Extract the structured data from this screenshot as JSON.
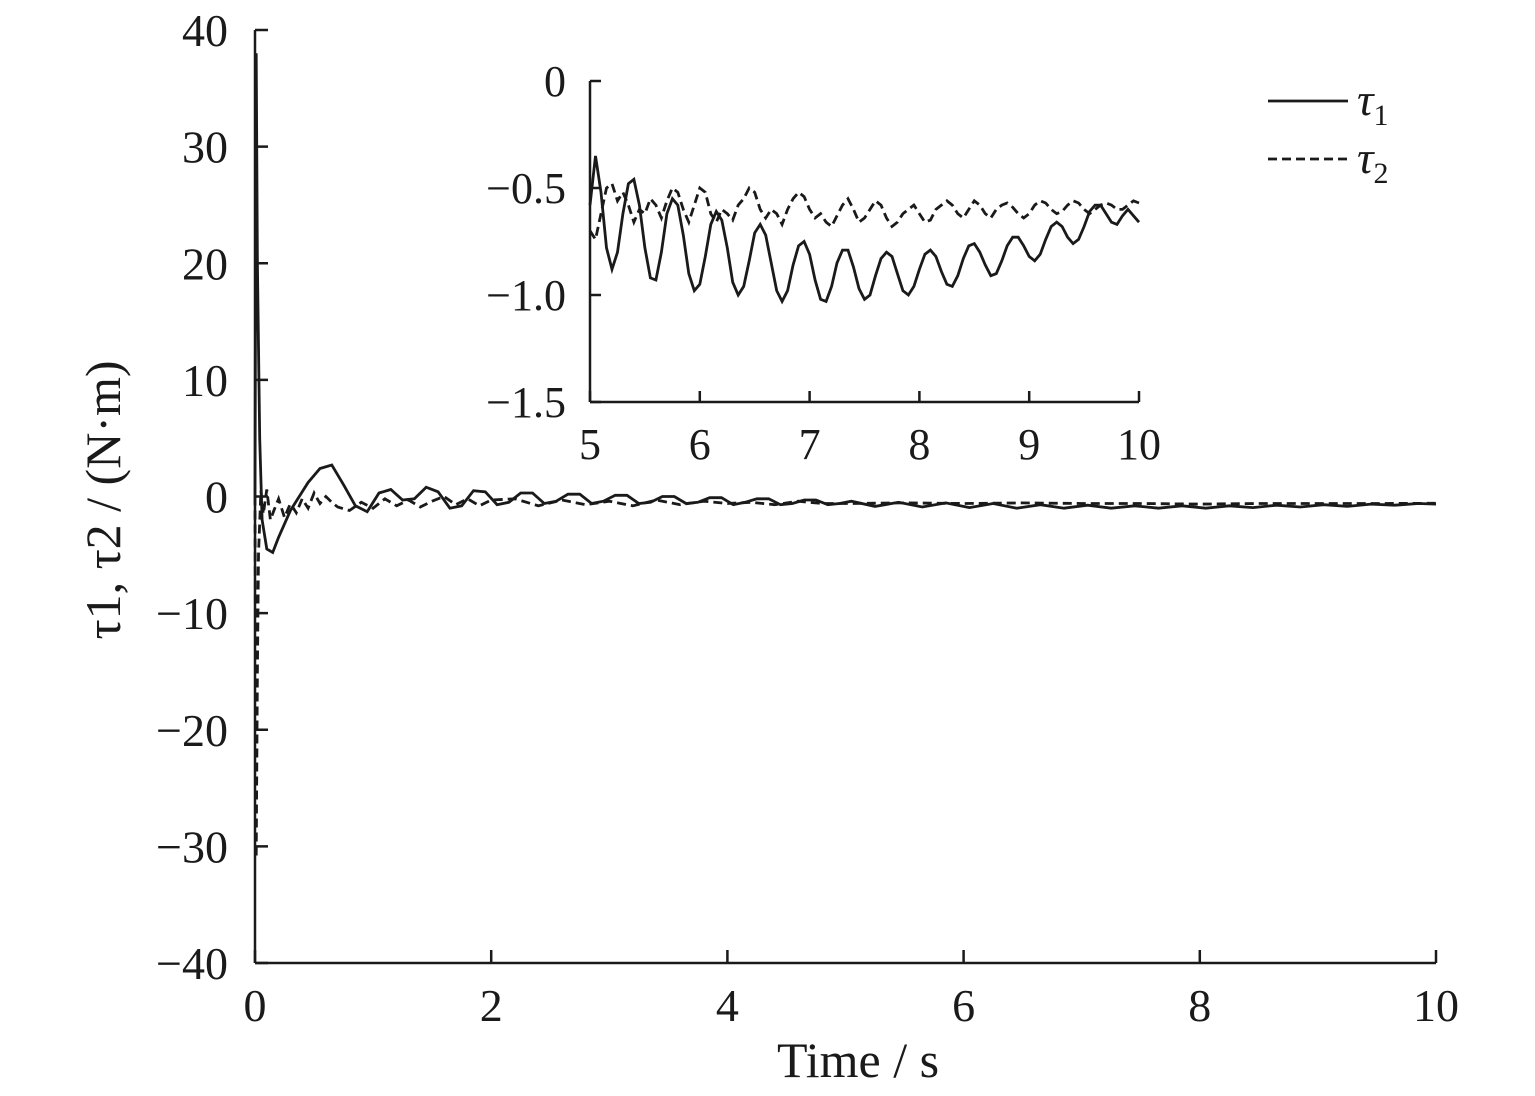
{
  "chart_data": [
    {
      "type": "line",
      "name": "main",
      "xlabel": "Time / s",
      "ylabel": "τ1, τ2 / (N·m)",
      "xlim": [
        0,
        10
      ],
      "ylim": [
        -40,
        40
      ],
      "xticks": [
        "0",
        "2",
        "4",
        "6",
        "8",
        "10"
      ],
      "yticks": [
        "40",
        "30",
        "20",
        "10",
        "0",
        "−10",
        "−20",
        "−30",
        "−40"
      ],
      "legend": {
        "placement": "top-right",
        "entries": [
          {
            "base": "τ",
            "sub": "1",
            "style": "solid"
          },
          {
            "base": "τ",
            "sub": "2",
            "style": "dashed"
          }
        ]
      },
      "series": [
        {
          "name": "τ1",
          "x": [
            0,
            0.01,
            0.02,
            0.04,
            0.06,
            0.1,
            0.15,
            0.2,
            0.3,
            0.45,
            0.55,
            0.65,
            0.75,
            0.85,
            0.95,
            1.05,
            1.15,
            1.25,
            1.35,
            1.45,
            1.55,
            1.65,
            1.75,
            1.85,
            1.95,
            2.05,
            2.15,
            2.25,
            2.35,
            2.45,
            2.55,
            2.65,
            2.75,
            2.85,
            2.95,
            3.05,
            3.15,
            3.25,
            3.35,
            3.45,
            3.55,
            3.65,
            3.75,
            3.85,
            3.95,
            4.05,
            4.15,
            4.25,
            4.35,
            4.45,
            4.55,
            4.65,
            4.75,
            4.85,
            4.95,
            5.05,
            5.25,
            5.45,
            5.65,
            5.85,
            6.05,
            6.25,
            6.45,
            6.65,
            6.85,
            7.05,
            7.25,
            7.45,
            7.65,
            7.85,
            8.05,
            8.25,
            8.45,
            8.65,
            8.85,
            9.05,
            9.25,
            9.45,
            9.65,
            9.85,
            10
          ],
          "y": [
            0,
            38,
            20,
            5,
            -2,
            -4.5,
            -4.8,
            -3.5,
            -1.2,
            1.2,
            2.4,
            2.7,
            1.0,
            -0.8,
            -1.3,
            0.3,
            0.6,
            -0.3,
            -0.2,
            0.8,
            0.4,
            -1.0,
            -0.8,
            0.5,
            0.4,
            -0.7,
            -0.5,
            0.3,
            0.3,
            -0.6,
            -0.4,
            0.2,
            0.2,
            -0.6,
            -0.4,
            0.1,
            0.1,
            -0.6,
            -0.5,
            0.0,
            0.0,
            -0.6,
            -0.5,
            -0.1,
            -0.1,
            -0.7,
            -0.5,
            -0.2,
            -0.2,
            -0.7,
            -0.6,
            -0.3,
            -0.3,
            -0.7,
            -0.6,
            -0.4,
            -0.85,
            -0.5,
            -0.9,
            -0.55,
            -0.95,
            -0.6,
            -1.0,
            -0.7,
            -1.0,
            -0.75,
            -1.0,
            -0.8,
            -1.0,
            -0.8,
            -1.0,
            -0.8,
            -0.95,
            -0.75,
            -0.9,
            -0.7,
            -0.85,
            -0.65,
            -0.75,
            -0.6,
            -0.65
          ]
        },
        {
          "name": "τ2",
          "x": [
            0,
            0.01,
            0.02,
            0.03,
            0.05,
            0.07,
            0.1,
            0.13,
            0.16,
            0.2,
            0.25,
            0.3,
            0.35,
            0.4,
            0.45,
            0.5,
            0.55,
            0.6,
            0.65,
            0.7,
            0.8,
            0.9,
            1.0,
            1.1,
            1.2,
            1.3,
            1.4,
            1.5,
            1.6,
            1.7,
            1.8,
            1.9,
            2.0,
            2.2,
            2.4,
            2.6,
            2.8,
            3.0,
            3.2,
            3.4,
            3.6,
            3.8,
            4.0,
            4.2,
            4.4,
            4.6,
            4.8,
            5.0,
            5.5,
            6.0,
            6.5,
            7.0,
            7.5,
            8.0,
            8.5,
            9.0,
            9.5,
            10
          ],
          "y": [
            0,
            -31,
            -15,
            -5,
            0.5,
            -1.5,
            0.6,
            -2.0,
            -1.2,
            -0.2,
            -1.8,
            -0.6,
            -1.4,
            -0.2,
            -1.0,
            0.3,
            -0.6,
            0.0,
            -0.5,
            -0.9,
            -1.2,
            -0.5,
            -1.0,
            -0.2,
            -0.8,
            -0.3,
            -0.9,
            -0.4,
            0.0,
            -0.7,
            -0.2,
            -0.8,
            -0.3,
            -0.2,
            -0.8,
            -0.3,
            -0.7,
            -0.4,
            -0.8,
            -0.3,
            -0.7,
            -0.4,
            -0.6,
            -0.5,
            -0.7,
            -0.4,
            -0.6,
            -0.6,
            -0.55,
            -0.6,
            -0.55,
            -0.6,
            -0.6,
            -0.65,
            -0.6,
            -0.6,
            -0.6,
            -0.58
          ]
        }
      ]
    },
    {
      "type": "line",
      "name": "inset",
      "xlabel": "",
      "ylabel": "",
      "xlim": [
        5,
        10
      ],
      "ylim": [
        -1.5,
        0
      ],
      "xticks": [
        "5",
        "6",
        "7",
        "8",
        "9",
        "10"
      ],
      "yticks": [
        "0",
        "−0.5",
        "−1.0",
        "−1.5"
      ],
      "series": [
        {
          "name": "τ1",
          "x": [
            5.0,
            5.05,
            5.1,
            5.15,
            5.2,
            5.25,
            5.3,
            5.35,
            5.4,
            5.45,
            5.5,
            5.55,
            5.6,
            5.65,
            5.7,
            5.75,
            5.8,
            5.85,
            5.9,
            5.95,
            6.0,
            6.05,
            6.1,
            6.15,
            6.2,
            6.25,
            6.3,
            6.35,
            6.4,
            6.45,
            6.5,
            6.55,
            6.6,
            6.65,
            6.7,
            6.75,
            6.8,
            6.85,
            6.9,
            6.95,
            7.0,
            7.05,
            7.1,
            7.15,
            7.2,
            7.25,
            7.3,
            7.35,
            7.4,
            7.45,
            7.5,
            7.55,
            7.6,
            7.65,
            7.7,
            7.75,
            7.8,
            7.85,
            7.9,
            7.95,
            8.0,
            8.05,
            8.1,
            8.15,
            8.2,
            8.25,
            8.3,
            8.35,
            8.4,
            8.45,
            8.5,
            8.55,
            8.6,
            8.65,
            8.7,
            8.75,
            8.8,
            8.85,
            8.9,
            8.95,
            9.0,
            9.05,
            9.1,
            9.15,
            9.2,
            9.25,
            9.3,
            9.35,
            9.4,
            9.45,
            9.5,
            9.55,
            9.6,
            9.65,
            9.7,
            9.75,
            9.8,
            9.85,
            9.9,
            9.95,
            10.0
          ],
          "y": [
            -0.58,
            -0.35,
            -0.52,
            -0.78,
            -0.88,
            -0.8,
            -0.62,
            -0.48,
            -0.46,
            -0.58,
            -0.78,
            -0.92,
            -0.93,
            -0.8,
            -0.62,
            -0.55,
            -0.58,
            -0.72,
            -0.9,
            -0.98,
            -0.95,
            -0.82,
            -0.67,
            -0.61,
            -0.65,
            -0.78,
            -0.94,
            -1.0,
            -0.96,
            -0.84,
            -0.71,
            -0.67,
            -0.72,
            -0.85,
            -0.98,
            -1.03,
            -0.98,
            -0.86,
            -0.77,
            -0.75,
            -0.81,
            -0.93,
            -1.02,
            -1.03,
            -0.96,
            -0.85,
            -0.79,
            -0.79,
            -0.87,
            -0.97,
            -1.02,
            -1.0,
            -0.91,
            -0.83,
            -0.8,
            -0.82,
            -0.9,
            -0.98,
            -1.0,
            -0.96,
            -0.88,
            -0.81,
            -0.79,
            -0.82,
            -0.89,
            -0.95,
            -0.96,
            -0.91,
            -0.83,
            -0.77,
            -0.76,
            -0.8,
            -0.86,
            -0.91,
            -0.9,
            -0.84,
            -0.77,
            -0.73,
            -0.73,
            -0.77,
            -0.82,
            -0.84,
            -0.81,
            -0.74,
            -0.68,
            -0.66,
            -0.68,
            -0.73,
            -0.76,
            -0.74,
            -0.68,
            -0.61,
            -0.58,
            -0.58,
            -0.62,
            -0.66,
            -0.67,
            -0.63,
            -0.6,
            -0.63,
            -0.66
          ]
        },
        {
          "name": "τ2",
          "x": [
            5.0,
            5.05,
            5.1,
            5.15,
            5.2,
            5.25,
            5.3,
            5.35,
            5.4,
            5.45,
            5.5,
            5.55,
            5.6,
            5.65,
            5.7,
            5.75,
            5.8,
            5.85,
            5.9,
            5.95,
            6.0,
            6.05,
            6.1,
            6.15,
            6.2,
            6.25,
            6.3,
            6.35,
            6.4,
            6.45,
            6.5,
            6.55,
            6.6,
            6.65,
            6.7,
            6.75,
            6.8,
            6.85,
            6.9,
            6.95,
            7.0,
            7.05,
            7.1,
            7.15,
            7.2,
            7.25,
            7.3,
            7.35,
            7.4,
            7.45,
            7.5,
            7.55,
            7.6,
            7.65,
            7.7,
            7.75,
            7.8,
            7.85,
            7.9,
            7.95,
            8.0,
            8.05,
            8.1,
            8.15,
            8.2,
            8.25,
            8.3,
            8.35,
            8.4,
            8.45,
            8.5,
            8.55,
            8.6,
            8.65,
            8.7,
            8.75,
            8.8,
            8.85,
            8.9,
            8.95,
            9.0,
            9.05,
            9.1,
            9.15,
            9.2,
            9.25,
            9.3,
            9.35,
            9.4,
            9.45,
            9.5,
            9.55,
            9.6,
            9.65,
            9.7,
            9.75,
            9.8,
            9.85,
            9.9,
            9.95,
            10.0
          ],
          "y": [
            -0.7,
            -0.74,
            -0.62,
            -0.5,
            -0.48,
            -0.56,
            -0.52,
            -0.58,
            -0.66,
            -0.6,
            -0.62,
            -0.55,
            -0.58,
            -0.64,
            -0.56,
            -0.5,
            -0.52,
            -0.6,
            -0.66,
            -0.58,
            -0.5,
            -0.52,
            -0.62,
            -0.66,
            -0.6,
            -0.62,
            -0.65,
            -0.58,
            -0.55,
            -0.5,
            -0.52,
            -0.6,
            -0.64,
            -0.6,
            -0.62,
            -0.67,
            -0.6,
            -0.55,
            -0.52,
            -0.54,
            -0.6,
            -0.64,
            -0.62,
            -0.66,
            -0.68,
            -0.63,
            -0.58,
            -0.55,
            -0.6,
            -0.66,
            -0.64,
            -0.6,
            -0.56,
            -0.58,
            -0.64,
            -0.68,
            -0.66,
            -0.62,
            -0.6,
            -0.58,
            -0.62,
            -0.66,
            -0.65,
            -0.6,
            -0.58,
            -0.56,
            -0.58,
            -0.62,
            -0.64,
            -0.6,
            -0.56,
            -0.58,
            -0.62,
            -0.64,
            -0.6,
            -0.58,
            -0.57,
            -0.59,
            -0.62,
            -0.64,
            -0.62,
            -0.58,
            -0.56,
            -0.57,
            -0.6,
            -0.62,
            -0.61,
            -0.58,
            -0.56,
            -0.57,
            -0.6,
            -0.62,
            -0.6,
            -0.58,
            -0.57,
            -0.58,
            -0.6,
            -0.6,
            -0.58,
            -0.56,
            -0.57
          ]
        }
      ]
    }
  ]
}
